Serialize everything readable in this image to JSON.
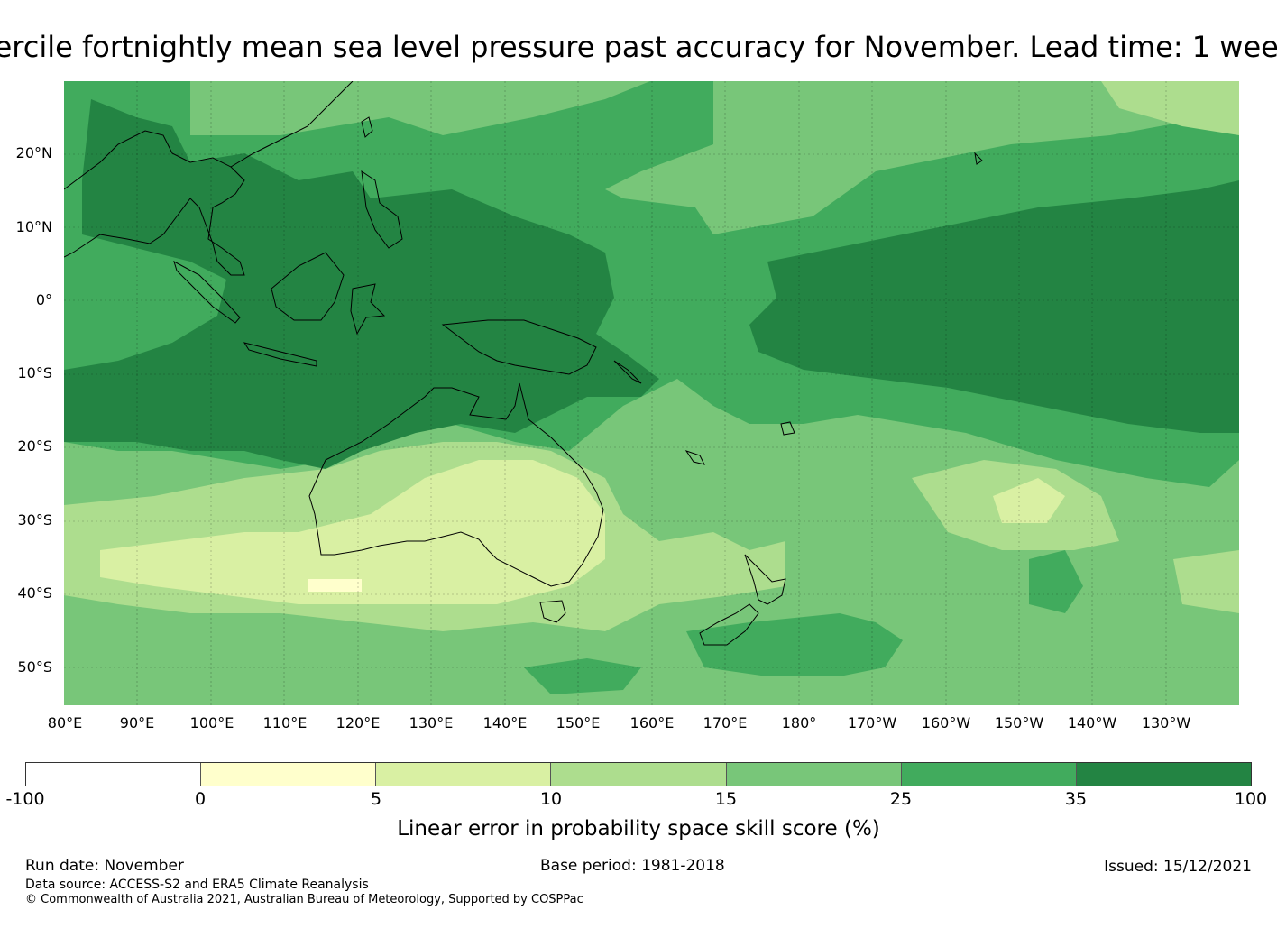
{
  "title": "Tercile fortnightly mean sea level pressure past accuracy for November. Lead time: 1 week",
  "map": {
    "lat_labels": [
      "20°N",
      "10°N",
      "0°",
      "10°S",
      "20°S",
      "30°S",
      "40°S",
      "50°S"
    ],
    "lon_labels": [
      "80°E",
      "90°E",
      "100°E",
      "110°E",
      "120°E",
      "130°E",
      "140°E",
      "150°E",
      "160°E",
      "170°E",
      "180°",
      "170°W",
      "160°W",
      "150°W",
      "140°W",
      "130°W"
    ],
    "extent": {
      "lon_min": 80,
      "lon_max": 240,
      "lat_min": -55,
      "lat_max": 30
    },
    "skill_regions": [
      {
        "name": "western-subtropics",
        "category": "15-25"
      },
      {
        "name": "maritime-continent",
        "category": "25-35"
      },
      {
        "name": "central-east-pacific-equator",
        "category": "35-100"
      },
      {
        "name": "southern-australia",
        "category": "5-10"
      },
      {
        "name": "southern-ocean",
        "category": "15-25"
      }
    ]
  },
  "colorbar": {
    "ticks": [
      "-100",
      "0",
      "5",
      "10",
      "15",
      "25",
      "35",
      "100"
    ],
    "colors": [
      "#ffffff",
      "#ffffcc",
      "#d9f0a3",
      "#addd8e",
      "#78c679",
      "#41ab5d",
      "#238443"
    ],
    "label": "Linear error in probability space skill score (%)"
  },
  "footer": {
    "run_date": "Run date: November",
    "base_period": "Base period: 1981-2018",
    "issued": "Issued: 15/12/2021",
    "data_source": "Data source: ACCESS-S2 and ERA5 Climate Reanalysis",
    "copyright": "© Commonwealth of Australia 2021, Australian Bureau of Meteorology, Supported by COSPPac"
  }
}
